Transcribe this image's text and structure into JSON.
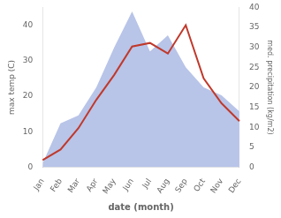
{
  "chart_data": {
    "type": "line",
    "categories": [
      "Jan",
      "Feb",
      "Mar",
      "Apr",
      "May",
      "Jun",
      "Jul",
      "Aug",
      "Sep",
      "Oct",
      "Nov",
      "Dec"
    ],
    "series": [
      {
        "type": "area",
        "color": "#b8c4e8",
        "axis": "y2",
        "values": [
          1,
          11,
          13,
          20,
          30,
          39,
          29,
          33,
          25,
          20,
          18,
          14
        ]
      },
      {
        "type": "line",
        "color": "#c0392b",
        "values": [
          2,
          5,
          11,
          19,
          26,
          34,
          35,
          32,
          40,
          25,
          18,
          13
        ]
      }
    ],
    "xlabel": "date (month)",
    "ylabel": "max temp (C)",
    "y2label": "med. precipitation (kg/m2)",
    "ylim": [
      0,
      45
    ],
    "yticks": [
      0,
      10,
      20,
      30,
      40
    ],
    "y2lim": [
      0,
      40
    ],
    "y2ticks": [
      0,
      5,
      10,
      15,
      20,
      25,
      30,
      35,
      40
    ],
    "grid": false
  }
}
